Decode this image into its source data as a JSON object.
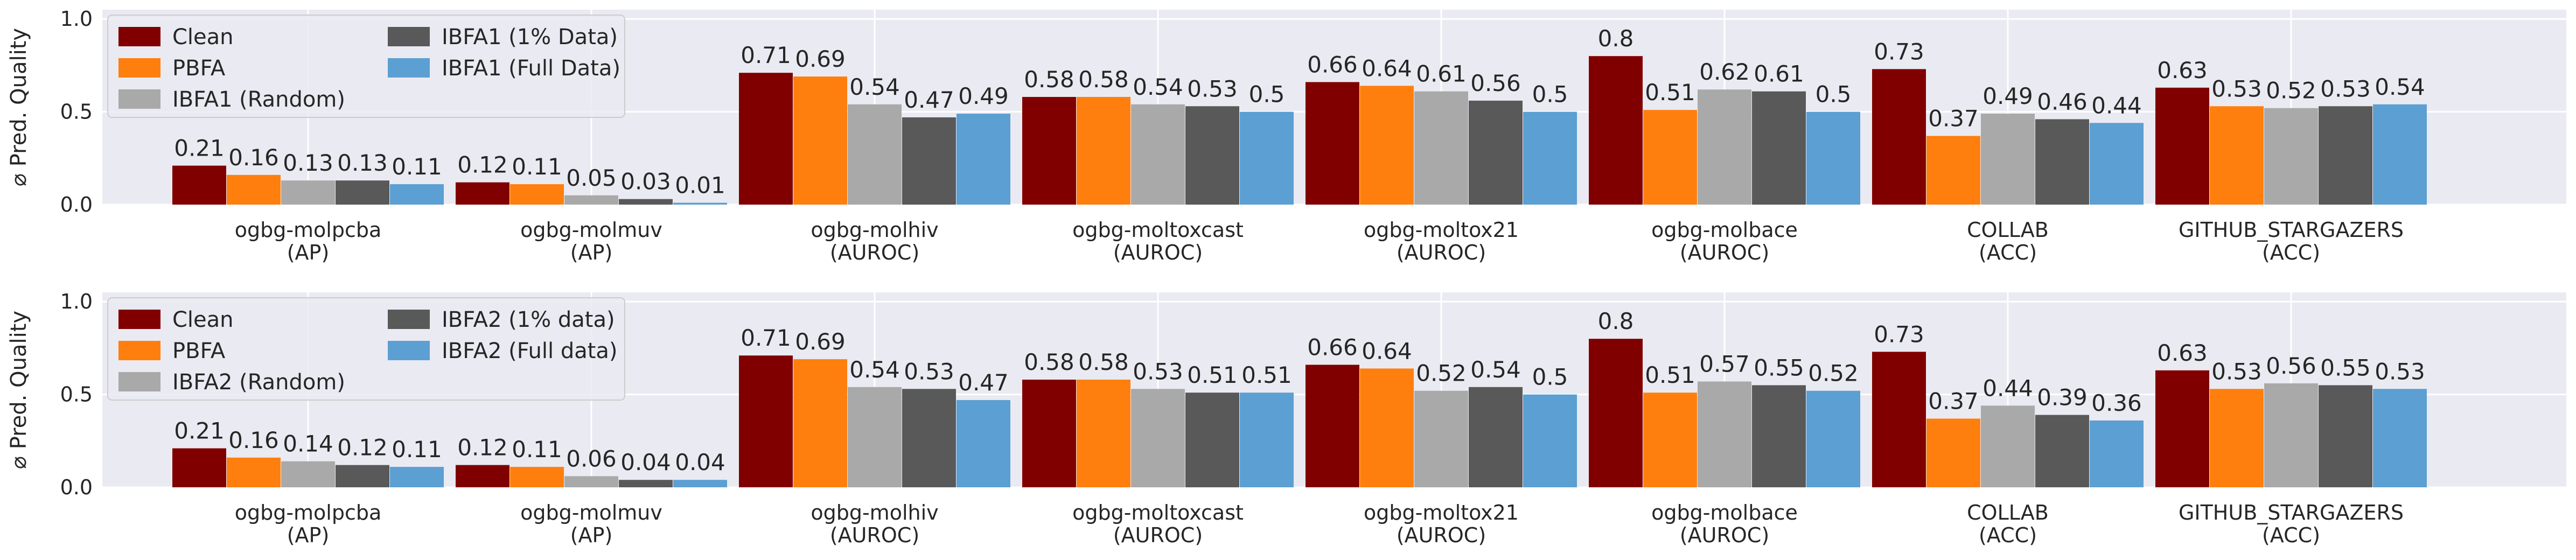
{
  "chart_data": [
    {
      "type": "bar",
      "ylabel": "⌀ Pred. Quality",
      "ylim": [
        0,
        1.05
      ],
      "yticks": [
        0.0,
        0.5,
        1.0
      ],
      "ytick_labels": [
        "0.0",
        "0.5",
        "1.0"
      ],
      "grid": true,
      "legend_position": "top-left",
      "categories": [
        {
          "name": "ogbg-molpcba",
          "metric": "(AP)"
        },
        {
          "name": "ogbg-molmuv",
          "metric": "(AP)"
        },
        {
          "name": "ogbg-molhiv",
          "metric": "(AUROC)"
        },
        {
          "name": "ogbg-moltoxcast",
          "metric": "(AUROC)"
        },
        {
          "name": "ogbg-moltox21",
          "metric": "(AUROC)"
        },
        {
          "name": "ogbg-molbace",
          "metric": "(AUROC)"
        },
        {
          "name": "COLLAB",
          "metric": "(ACC)"
        },
        {
          "name": "GITHUB_STARGAZERS",
          "metric": "(ACC)"
        }
      ],
      "series": [
        {
          "name": "Clean",
          "color": "#800000",
          "values": [
            0.21,
            0.12,
            0.71,
            0.58,
            0.66,
            0.8,
            0.73,
            0.63
          ]
        },
        {
          "name": "PBFA",
          "color": "#ff7f0e",
          "values": [
            0.16,
            0.11,
            0.69,
            0.58,
            0.64,
            0.51,
            0.37,
            0.53
          ]
        },
        {
          "name": "IBFA1 (Random)",
          "color": "#a9a9a9",
          "values": [
            0.13,
            0.05,
            0.54,
            0.54,
            0.61,
            0.62,
            0.49,
            0.52
          ]
        },
        {
          "name": "IBFA1 (1% Data)",
          "color": "#595959",
          "values": [
            0.13,
            0.03,
            0.47,
            0.53,
            0.56,
            0.61,
            0.46,
            0.53
          ]
        },
        {
          "name": "IBFA1 (Full Data)",
          "color": "#5c9fd2",
          "values": [
            0.11,
            0.01,
            0.49,
            0.5,
            0.5,
            0.5,
            0.44,
            0.54
          ]
        }
      ]
    },
    {
      "type": "bar",
      "ylabel": "⌀ Pred. Quality",
      "ylim": [
        0,
        1.05
      ],
      "yticks": [
        0.0,
        0.5,
        1.0
      ],
      "ytick_labels": [
        "0.0",
        "0.5",
        "1.0"
      ],
      "grid": true,
      "legend_position": "top-left",
      "categories": [
        {
          "name": "ogbg-molpcba",
          "metric": "(AP)"
        },
        {
          "name": "ogbg-molmuv",
          "metric": "(AP)"
        },
        {
          "name": "ogbg-molhiv",
          "metric": "(AUROC)"
        },
        {
          "name": "ogbg-moltoxcast",
          "metric": "(AUROC)"
        },
        {
          "name": "ogbg-moltox21",
          "metric": "(AUROC)"
        },
        {
          "name": "ogbg-molbace",
          "metric": "(AUROC)"
        },
        {
          "name": "COLLAB",
          "metric": "(ACC)"
        },
        {
          "name": "GITHUB_STARGAZERS",
          "metric": "(ACC)"
        }
      ],
      "series": [
        {
          "name": "Clean",
          "color": "#800000",
          "values": [
            0.21,
            0.12,
            0.71,
            0.58,
            0.66,
            0.8,
            0.73,
            0.63
          ]
        },
        {
          "name": "PBFA",
          "color": "#ff7f0e",
          "values": [
            0.16,
            0.11,
            0.69,
            0.58,
            0.64,
            0.51,
            0.37,
            0.53
          ]
        },
        {
          "name": "IBFA2 (Random)",
          "color": "#a9a9a9",
          "values": [
            0.14,
            0.06,
            0.54,
            0.53,
            0.52,
            0.57,
            0.44,
            0.56
          ]
        },
        {
          "name": "IBFA2 (1% data)",
          "color": "#595959",
          "values": [
            0.12,
            0.04,
            0.53,
            0.51,
            0.54,
            0.55,
            0.39,
            0.55
          ]
        },
        {
          "name": "IBFA2 (Full data)",
          "color": "#5c9fd2",
          "values": [
            0.11,
            0.04,
            0.47,
            0.51,
            0.5,
            0.52,
            0.36,
            0.53
          ]
        }
      ]
    }
  ]
}
